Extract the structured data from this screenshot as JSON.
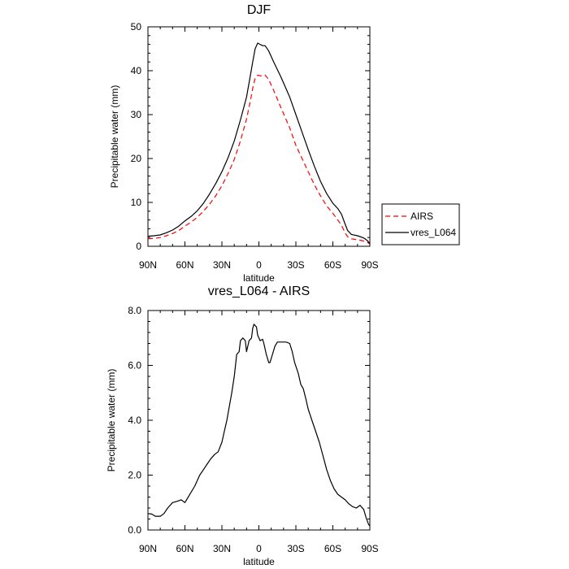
{
  "chart_data": [
    {
      "type": "line",
      "title": "DJF",
      "xlabel": "latitude",
      "ylabel": "Precipitable water (mm)",
      "xlim": [
        90,
        -90
      ],
      "ylim": [
        0,
        50
      ],
      "x_ticks": [
        90,
        60,
        30,
        0,
        -30,
        -60,
        -90
      ],
      "x_tick_labels": [
        "90N",
        "60N",
        "30N",
        "0",
        "30S",
        "60S",
        "90S"
      ],
      "y_ticks": [
        0,
        10,
        20,
        30,
        40,
        50
      ],
      "y_tick_labels": [
        "0",
        "10",
        "20",
        "30",
        "40",
        "50"
      ],
      "legend": {
        "placement": "right",
        "entries": [
          "AIRS",
          "vres_L064"
        ]
      },
      "series": [
        {
          "name": "AIRS",
          "color": "#ff0000",
          "dash": true,
          "points": [
            [
              90,
              1.7
            ],
            [
              85,
              1.8
            ],
            [
              80,
              2.0
            ],
            [
              75,
              2.4
            ],
            [
              70,
              2.9
            ],
            [
              65,
              3.6
            ],
            [
              60,
              4.6
            ],
            [
              55,
              5.5
            ],
            [
              50,
              6.6
            ],
            [
              45,
              8.0
            ],
            [
              40,
              9.6
            ],
            [
              35,
              11.5
            ],
            [
              30,
              13.8
            ],
            [
              25,
              16.6
            ],
            [
              20,
              19.8
            ],
            [
              15,
              24.0
            ],
            [
              10,
              29.0
            ],
            [
              7,
              33.0
            ],
            [
              5,
              36.0
            ],
            [
              3,
              38.3
            ],
            [
              1,
              39.0
            ],
            [
              -2,
              38.8
            ],
            [
              -5,
              39.0
            ],
            [
              -8,
              38.0
            ],
            [
              -12,
              35.5
            ],
            [
              -18,
              31.5
            ],
            [
              -25,
              27.0
            ],
            [
              -30,
              23.0
            ],
            [
              -35,
              20.0
            ],
            [
              -40,
              17.0
            ],
            [
              -45,
              14.0
            ],
            [
              -50,
              11.5
            ],
            [
              -55,
              9.2
            ],
            [
              -60,
              7.5
            ],
            [
              -64,
              6.0
            ],
            [
              -67,
              4.8
            ],
            [
              -70,
              3.0
            ],
            [
              -72,
              2.2
            ],
            [
              -75,
              1.7
            ],
            [
              -80,
              1.5
            ],
            [
              -85,
              1.2
            ],
            [
              -88,
              0.9
            ],
            [
              -90,
              0.5
            ]
          ]
        },
        {
          "name": "vres_L064",
          "color": "#000000",
          "dash": false,
          "points": [
            [
              90,
              2.3
            ],
            [
              85,
              2.4
            ],
            [
              80,
              2.6
            ],
            [
              75,
              3.1
            ],
            [
              70,
              3.7
            ],
            [
              65,
              4.6
            ],
            [
              60,
              5.8
            ],
            [
              55,
              6.8
            ],
            [
              50,
              8.1
            ],
            [
              45,
              9.8
            ],
            [
              40,
              11.9
            ],
            [
              35,
              14.3
            ],
            [
              30,
              17.0
            ],
            [
              25,
              20.2
            ],
            [
              20,
              24.0
            ],
            [
              15,
              28.8
            ],
            [
              10,
              34.0
            ],
            [
              7,
              38.8
            ],
            [
              5,
              42.0
            ],
            [
              3,
              45.0
            ],
            [
              1,
              46.3
            ],
            [
              -1,
              46.0
            ],
            [
              -3,
              45.7
            ],
            [
              -5,
              45.7
            ],
            [
              -8,
              44.5
            ],
            [
              -12,
              42.0
            ],
            [
              -18,
              38.5
            ],
            [
              -25,
              34.0
            ],
            [
              -30,
              30.0
            ],
            [
              -35,
              26.0
            ],
            [
              -40,
              22.0
            ],
            [
              -45,
              18.2
            ],
            [
              -50,
              14.8
            ],
            [
              -55,
              12.0
            ],
            [
              -60,
              9.8
            ],
            [
              -64,
              8.6
            ],
            [
              -67,
              7.3
            ],
            [
              -70,
              5.0
            ],
            [
              -72,
              3.6
            ],
            [
              -75,
              2.7
            ],
            [
              -80,
              2.4
            ],
            [
              -85,
              1.9
            ],
            [
              -88,
              1.3
            ],
            [
              -90,
              0.6
            ]
          ]
        }
      ]
    },
    {
      "type": "line",
      "title": "vres_L064 - AIRS",
      "xlabel": "latitude",
      "ylabel": "Precipitable water (mm)",
      "xlim": [
        90,
        -90
      ],
      "ylim": [
        0,
        8
      ],
      "x_ticks": [
        90,
        60,
        30,
        0,
        -30,
        -60,
        -90
      ],
      "x_tick_labels": [
        "90N",
        "60N",
        "30N",
        "0",
        "30S",
        "60S",
        "90S"
      ],
      "y_ticks": [
        0,
        2,
        4,
        6,
        8
      ],
      "y_tick_labels": [
        "0.0",
        "2.0",
        "4.0",
        "6.0",
        "8.0"
      ],
      "series": [
        {
          "name": "vres_L064 - AIRS",
          "color": "#000000",
          "dash": false,
          "points": [
            [
              90,
              0.6
            ],
            [
              87,
              0.58
            ],
            [
              84,
              0.5
            ],
            [
              80,
              0.5
            ],
            [
              77,
              0.6
            ],
            [
              74,
              0.8
            ],
            [
              70,
              1.0
            ],
            [
              66,
              1.05
            ],
            [
              63,
              1.1
            ],
            [
              60,
              1.0
            ],
            [
              56,
              1.3
            ],
            [
              52,
              1.6
            ],
            [
              48,
              2.0
            ],
            [
              45,
              2.2
            ],
            [
              42,
              2.4
            ],
            [
              39,
              2.6
            ],
            [
              36,
              2.75
            ],
            [
              33,
              2.85
            ],
            [
              30,
              3.2
            ],
            [
              28,
              3.6
            ],
            [
              26,
              4.0
            ],
            [
              24,
              4.5
            ],
            [
              22,
              5.0
            ],
            [
              20,
              5.6
            ],
            [
              18,
              6.4
            ],
            [
              16,
              6.5
            ],
            [
              15,
              6.9
            ],
            [
              13,
              7.0
            ],
            [
              11,
              6.9
            ],
            [
              10,
              6.5
            ],
            [
              8,
              6.9
            ],
            [
              6,
              7.0
            ],
            [
              5,
              7.35
            ],
            [
              4,
              7.5
            ],
            [
              2,
              7.4
            ],
            [
              1,
              7.1
            ],
            [
              -1,
              6.9
            ],
            [
              -3,
              6.95
            ],
            [
              -4,
              6.8
            ],
            [
              -6,
              6.4
            ],
            [
              -8,
              6.1
            ],
            [
              -9,
              6.1
            ],
            [
              -11,
              6.4
            ],
            [
              -13,
              6.7
            ],
            [
              -15,
              6.85
            ],
            [
              -18,
              6.85
            ],
            [
              -22,
              6.85
            ],
            [
              -25,
              6.8
            ],
            [
              -27,
              6.5
            ],
            [
              -29,
              6.1
            ],
            [
              -32,
              5.7
            ],
            [
              -34,
              5.3
            ],
            [
              -36,
              5.15
            ],
            [
              -38,
              4.8
            ],
            [
              -40,
              4.4
            ],
            [
              -43,
              4.0
            ],
            [
              -46,
              3.6
            ],
            [
              -49,
              3.2
            ],
            [
              -52,
              2.7
            ],
            [
              -55,
              2.2
            ],
            [
              -58,
              1.8
            ],
            [
              -61,
              1.5
            ],
            [
              -64,
              1.3
            ],
            [
              -67,
              1.2
            ],
            [
              -70,
              1.1
            ],
            [
              -73,
              0.95
            ],
            [
              -76,
              0.85
            ],
            [
              -79,
              0.8
            ],
            [
              -82,
              0.9
            ],
            [
              -85,
              0.75
            ],
            [
              -87,
              0.45
            ],
            [
              -89,
              0.2
            ],
            [
              -90,
              0.15
            ]
          ]
        }
      ]
    }
  ]
}
